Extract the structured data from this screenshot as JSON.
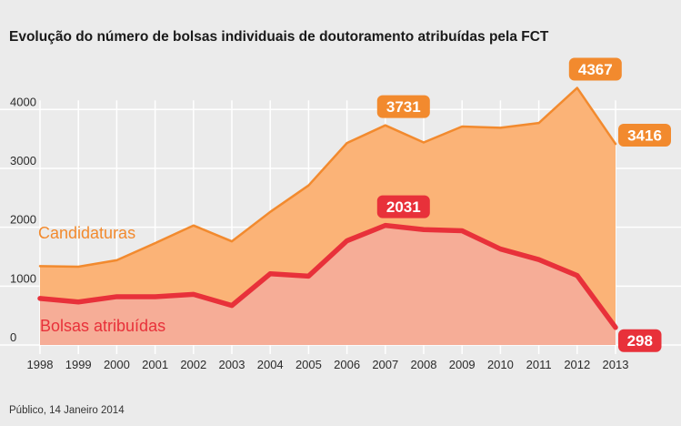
{
  "chart_data": {
    "type": "area",
    "title": "Evolução do número de bolsas individuais de doutoramento atribuídas pela FCT",
    "source": "Público, 14 Janeiro 2014",
    "xlabel": "",
    "ylabel": "",
    "x": [
      "1998",
      "1999",
      "2000",
      "2001",
      "2002",
      "2003",
      "2004",
      "2005",
      "2006",
      "2007",
      "2008",
      "2009",
      "2010",
      "2011",
      "2012",
      "2013"
    ],
    "ylim": [
      0,
      4700
    ],
    "y_ticks": [
      0,
      1000,
      2000,
      3000,
      4000
    ],
    "grid": true,
    "series": [
      {
        "name": "Candidaturas",
        "color": "#f28a2e",
        "fill": "#fbb377",
        "values": [
          1340,
          1330,
          1440,
          1730,
          2030,
          1760,
          2260,
          2710,
          3430,
          3731,
          3440,
          3710,
          3690,
          3770,
          4367,
          3416
        ]
      },
      {
        "name": "Bolsas atribuídas",
        "color": "#e8313a",
        "fill": "#f6ad97",
        "values": [
          790,
          730,
          820,
          820,
          860,
          670,
          1210,
          1170,
          1770,
          2031,
          1960,
          1940,
          1630,
          1450,
          1180,
          298
        ]
      }
    ],
    "annotations": [
      {
        "series": 0,
        "x": "2007",
        "text": "3731"
      },
      {
        "series": 0,
        "x": "2012",
        "text": "4367"
      },
      {
        "series": 0,
        "x": "2013",
        "text": "3416"
      },
      {
        "series": 1,
        "x": "2007",
        "text": "2031"
      },
      {
        "series": 1,
        "x": "2013",
        "text": "298"
      }
    ]
  }
}
